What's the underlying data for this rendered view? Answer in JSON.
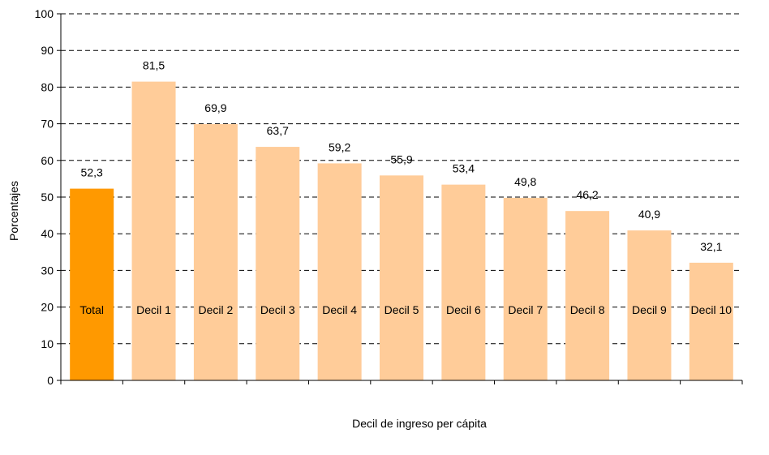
{
  "chart_data": {
    "type": "bar",
    "title": "",
    "xlabel": "Decil de ingreso per cápita",
    "ylabel": "Porcentajes",
    "ylim": [
      0,
      100
    ],
    "yticks": [
      0,
      10,
      20,
      30,
      40,
      50,
      60,
      70,
      80,
      90,
      100
    ],
    "ytick_labels": [
      "0",
      "10",
      "20",
      "30",
      "40",
      "50",
      "60",
      "70",
      "80",
      "90",
      "100"
    ],
    "grid": true,
    "legend": "none",
    "categories": [
      "Total",
      "Decil 1",
      "Decil 2",
      "Decil 3",
      "Decil 4",
      "Decil 5",
      "Decil 6",
      "Decil 7",
      "Decil 8",
      "Decil 9",
      "Decil 10"
    ],
    "values": [
      52.3,
      81.5,
      69.9,
      63.7,
      59.2,
      55.9,
      53.4,
      49.8,
      46.2,
      40.9,
      32.1
    ],
    "value_labels": [
      "52,3",
      "81,5",
      "69,9",
      "63,7",
      "59,2",
      "55,9",
      "53,4",
      "49,8",
      "46,2",
      "40,9",
      "32,1"
    ],
    "colors": {
      "highlight": "#FF9900",
      "bar": "#FFCC99",
      "grid": "#000000"
    },
    "highlight_index": 0
  }
}
